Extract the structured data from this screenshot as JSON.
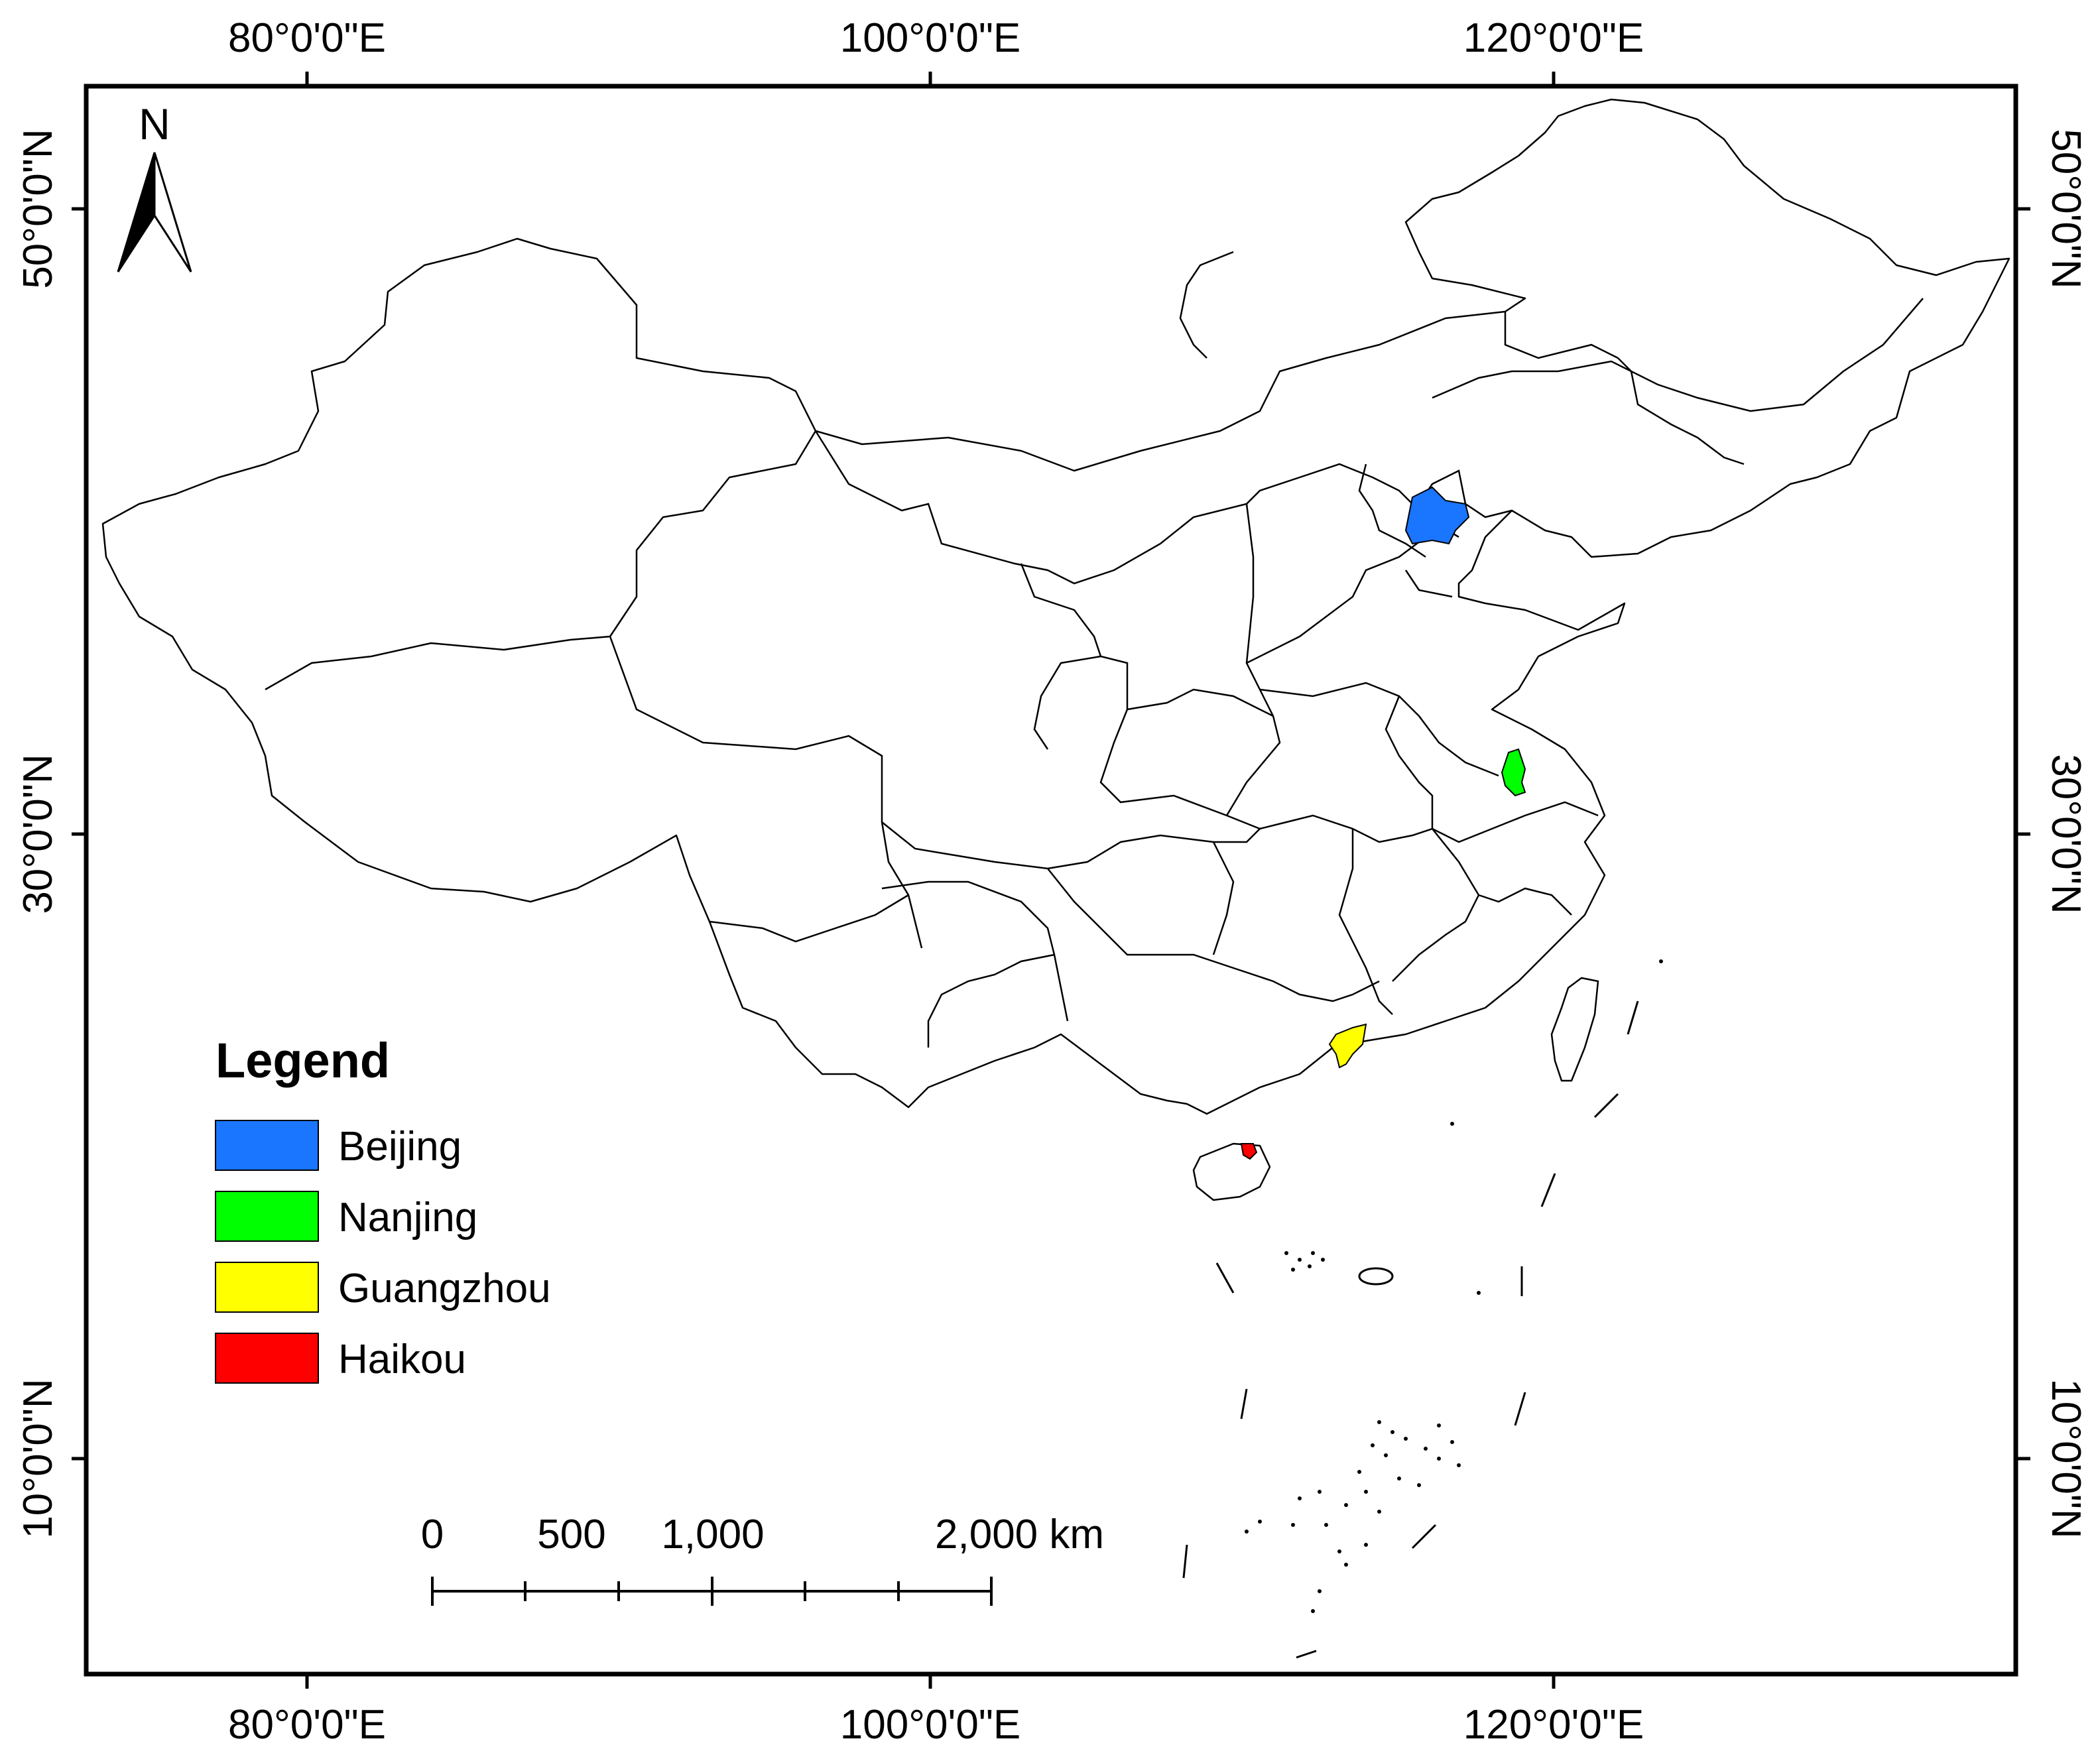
{
  "graticule": {
    "top_labels": [
      "80°0'0\"E",
      "100°0'0\"E",
      "120°0'0\"E"
    ],
    "bottom_labels": [
      "80°0'0\"E",
      "100°0'0\"E",
      "120°0'0\"E"
    ],
    "left_labels": [
      "50°0'0\"N",
      "30°0'0\"N",
      "10°0'0\"N"
    ],
    "right_labels": [
      "50°0'0\"N",
      "30°0'0\"N",
      "10°0'0\"N"
    ]
  },
  "north_arrow": {
    "label": "N"
  },
  "legend": {
    "title": "Legend",
    "items": [
      {
        "label": "Beijing",
        "color": "#1a75ff"
      },
      {
        "label": "Nanjing",
        "color": "#00ff00"
      },
      {
        "label": "Guangzhou",
        "color": "#ffff00"
      },
      {
        "label": "Haikou",
        "color": "#ff0000"
      }
    ]
  },
  "scale_bar": {
    "labels": [
      "0",
      "500",
      "1,000",
      "2,000 km"
    ]
  },
  "cities": [
    {
      "name": "Beijing",
      "color": "#1a75ff"
    },
    {
      "name": "Nanjing",
      "color": "#00ff00"
    },
    {
      "name": "Guangzhou",
      "color": "#ffff00"
    },
    {
      "name": "Haikou",
      "color": "#ff0000"
    }
  ]
}
